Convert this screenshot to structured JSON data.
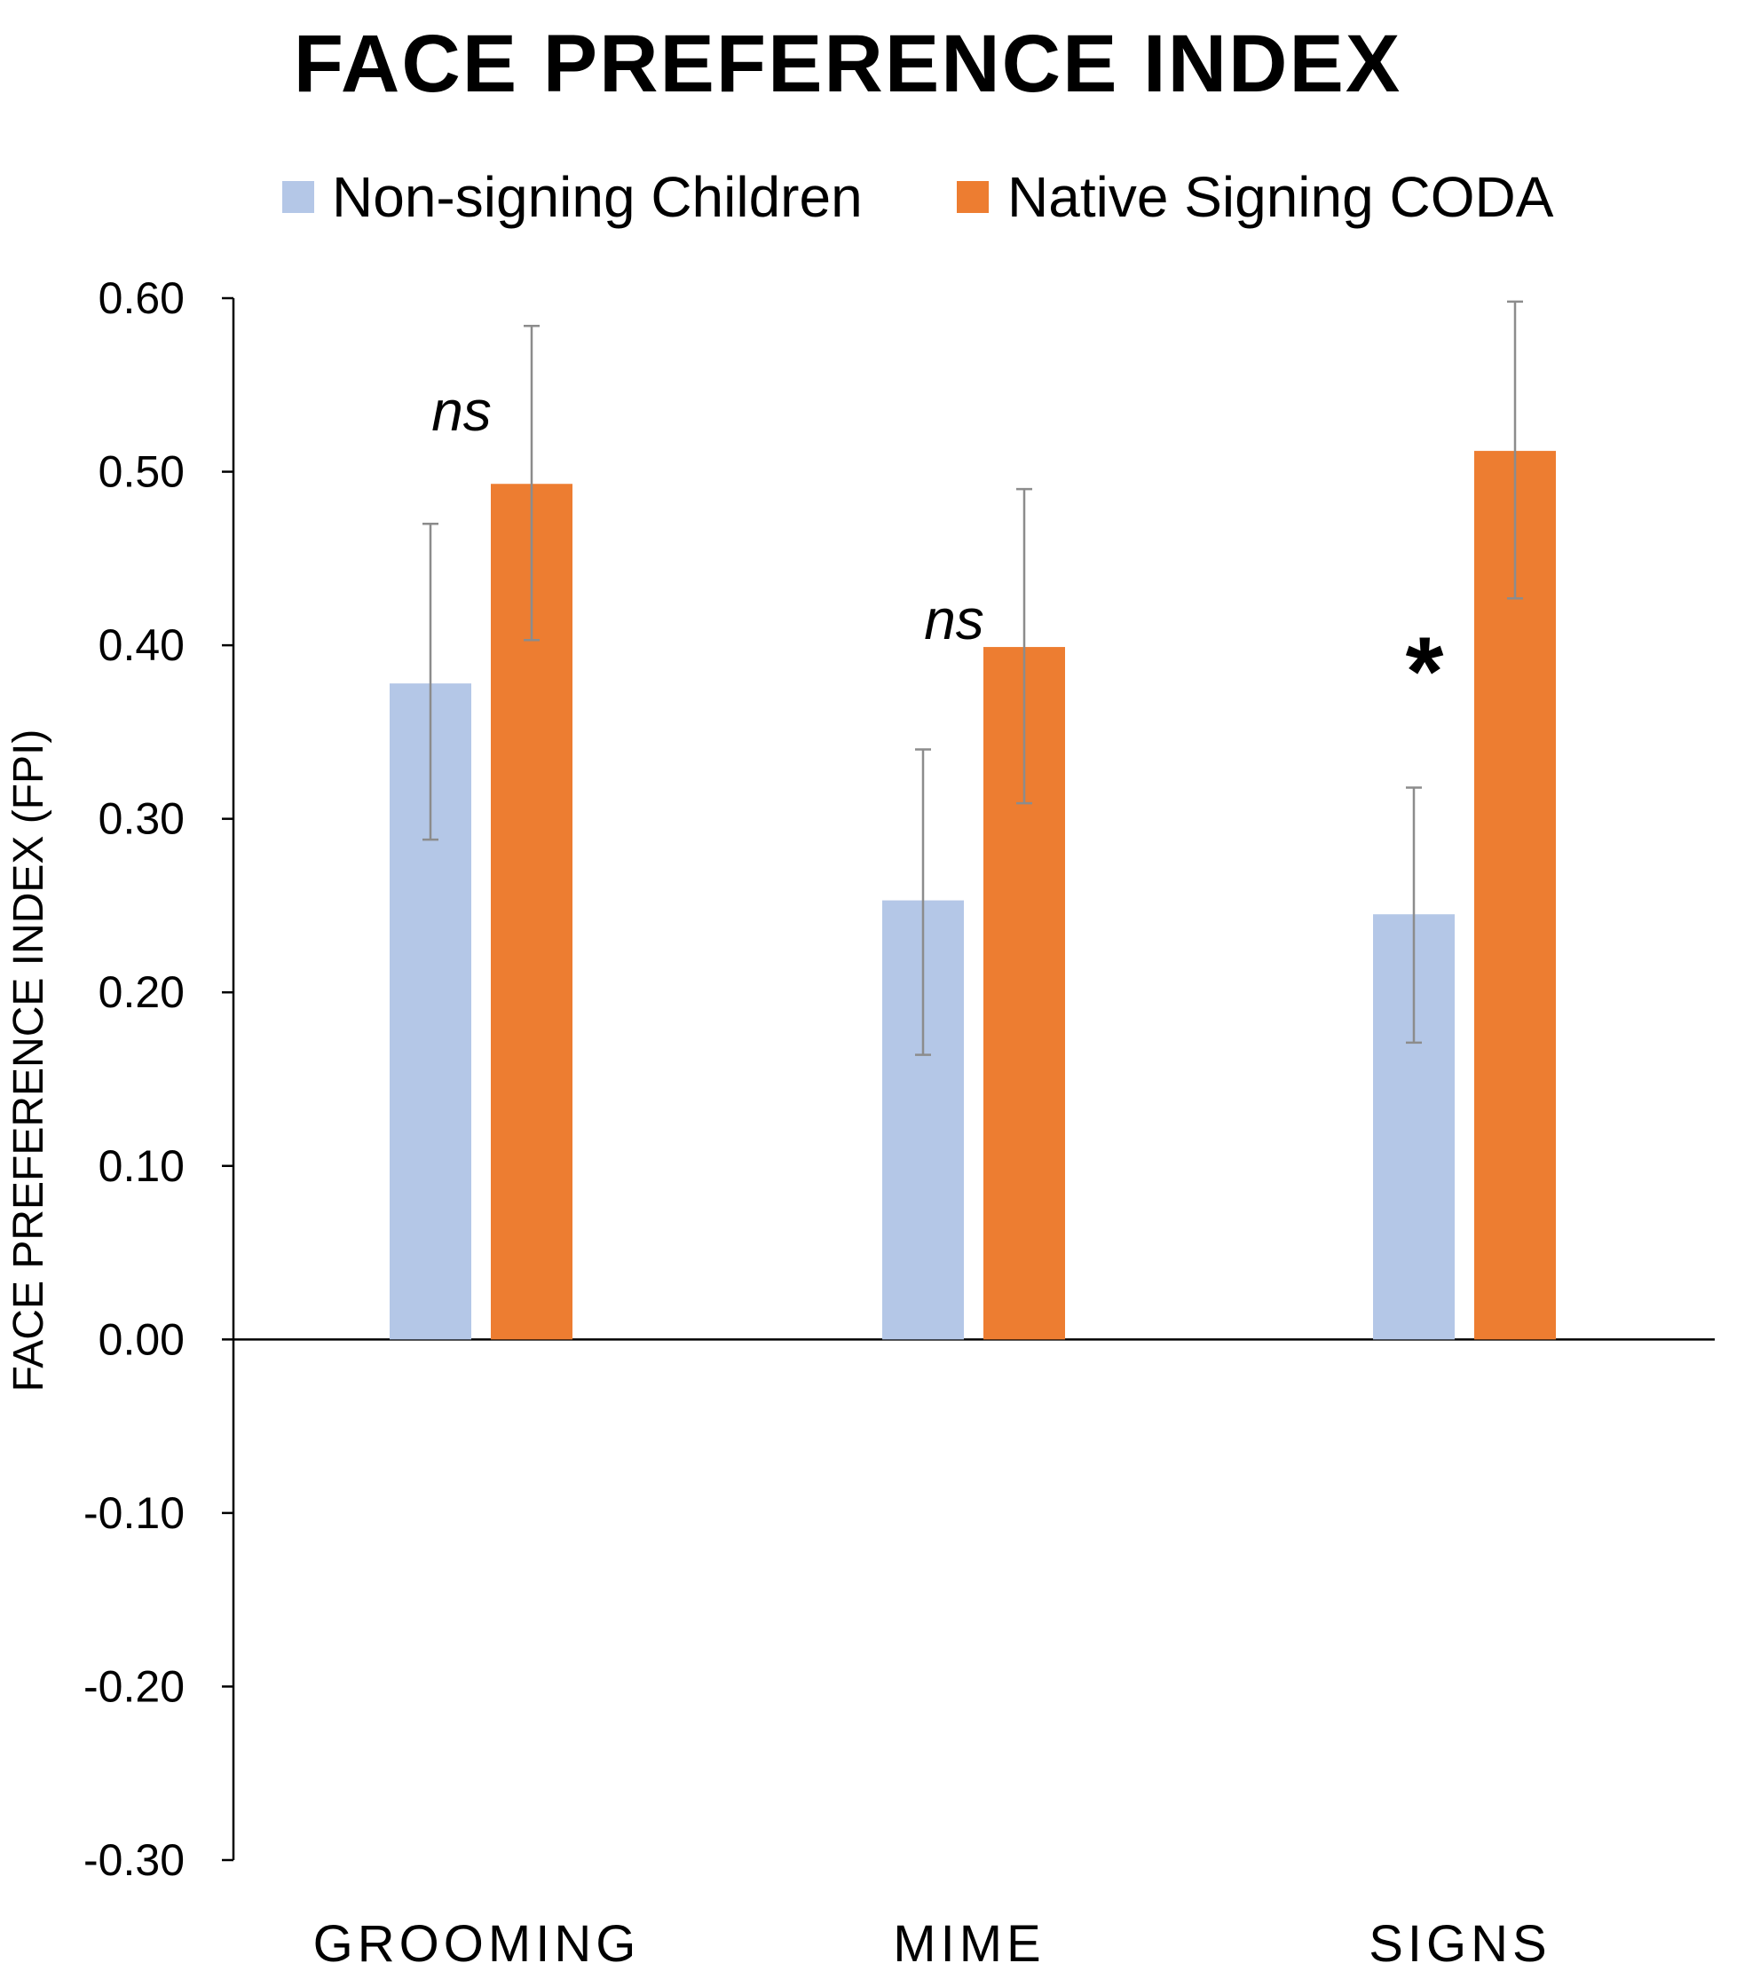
{
  "chart_data": {
    "type": "bar",
    "title": "FACE PREFERENCE INDEX",
    "xlabel": "",
    "ylabel": "FACE PREFERENCE INDEX (FPI)",
    "ylim": [
      -0.3,
      0.6
    ],
    "yticks": [
      "0.60",
      "0.50",
      "0.40",
      "0.30",
      "0.20",
      "0.10",
      "0.00",
      "-0.10",
      "-0.20",
      "-0.30"
    ],
    "categories": [
      "GROOMING",
      "MIME",
      "SIGNS"
    ],
    "legend_position": "top",
    "grid": false,
    "series": [
      {
        "name": "Non-signing Children",
        "color": "#b4c7e7",
        "values": [
          0.378,
          0.253,
          0.245
        ],
        "error_low": [
          0.288,
          0.164,
          0.171
        ],
        "error_high": [
          0.47,
          0.34,
          0.318
        ]
      },
      {
        "name": "Native Signing CODA",
        "color": "#ed7d31",
        "values": [
          0.493,
          0.399,
          0.512
        ],
        "error_low": [
          0.403,
          0.309,
          0.427
        ],
        "error_high": [
          0.584,
          0.49,
          0.598
        ]
      }
    ],
    "annotations": [
      {
        "category": "GROOMING",
        "text": "ns",
        "y": 0.535
      },
      {
        "category": "MIME",
        "text": "ns",
        "y": 0.415
      },
      {
        "category": "SIGNS",
        "text": "*",
        "y": 0.385
      }
    ]
  }
}
